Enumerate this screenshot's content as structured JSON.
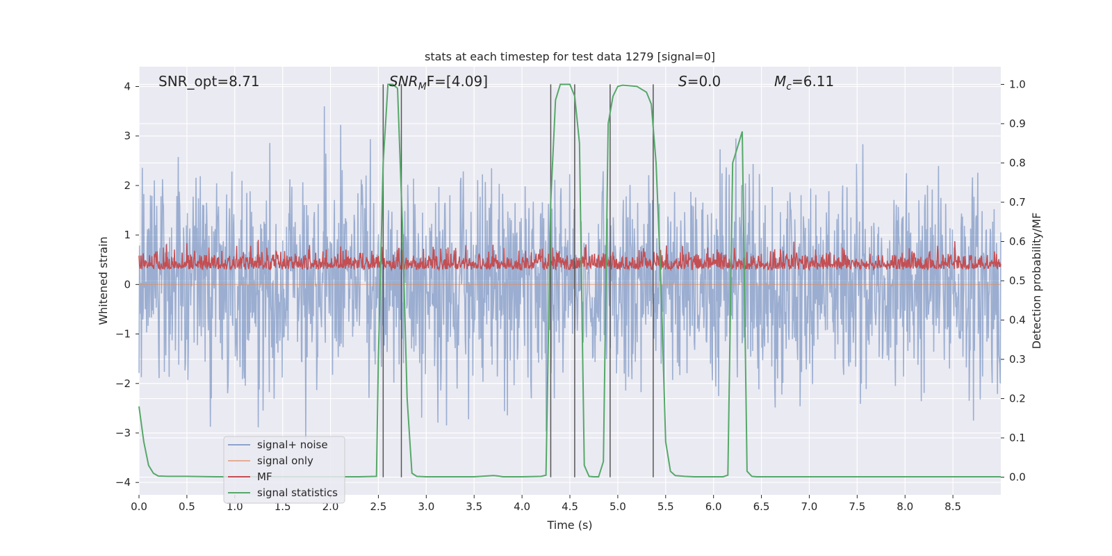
{
  "chart_data": {
    "type": "line",
    "title": "stats at each timestep for test data 1279 [signal=0]",
    "xlabel": "Time (s)",
    "ylabel_left": "Whitened strain",
    "ylabel_right": "Detection probability/MF",
    "xlim": [
      0.0,
      9.0
    ],
    "ylim_left": [
      -4.25,
      4.4
    ],
    "ylim_right": [
      -0.045,
      1.045
    ],
    "x_ticks": [
      "0.0",
      "0.5",
      "1.0",
      "1.5",
      "2.0",
      "2.5",
      "3.0",
      "3.5",
      "4.0",
      "4.5",
      "5.0",
      "5.5",
      "6.0",
      "6.5",
      "7.0",
      "7.5",
      "8.0",
      "8.5"
    ],
    "y_ticks_left": [
      "4",
      "3",
      "2",
      "1",
      "0",
      "−1",
      "−2",
      "−3",
      "−4"
    ],
    "y_ticks_right": [
      "1.0",
      "0.9",
      "0.8",
      "0.7",
      "0.6",
      "0.5",
      "0.4",
      "0.3",
      "0.2",
      "0.1",
      "0.0"
    ],
    "grid": true,
    "legend_position": "lower-left",
    "annotations": [
      {
        "id": "snr_opt",
        "text": "SNR_opt=8.71",
        "time": 0.2
      },
      {
        "id": "snr_mf",
        "text": "F=[4.09]",
        "time": 2.6
      },
      {
        "id": "s",
        "text": "=0.0",
        "time": 5.6
      },
      {
        "id": "mc",
        "text": "=6.11",
        "time": 6.6
      }
    ],
    "series": [
      {
        "name": "signal+ noise",
        "color": "#4c72b0",
        "axis": "left",
        "approx_range": [
          -3.7,
          3.6
        ]
      },
      {
        "name": "signal only",
        "color": "#dd8452",
        "axis": "left",
        "values_constant": 0.0
      },
      {
        "name": "MF",
        "color": "#c44e52",
        "axis": "left",
        "approx_range": [
          0.0,
          0.9
        ]
      },
      {
        "name": "signal statistics",
        "color": "#55a868",
        "axis": "right",
        "x": [
          0.0,
          0.05,
          0.1,
          0.15,
          0.2,
          0.3,
          0.5,
          0.8,
          1.2,
          1.5,
          2.0,
          2.3,
          2.48,
          2.5,
          2.55,
          2.6,
          2.65,
          2.7,
          2.75,
          2.8,
          2.85,
          2.9,
          3.0,
          3.5,
          3.7,
          3.75,
          3.8,
          4.0,
          4.2,
          4.25,
          4.3,
          4.35,
          4.4,
          4.45,
          4.5,
          4.55,
          4.6,
          4.65,
          4.7,
          4.75,
          4.8,
          4.85,
          4.9,
          4.95,
          5.0,
          5.05,
          5.1,
          5.2,
          5.3,
          5.35,
          5.4,
          5.45,
          5.5,
          5.55,
          5.6,
          5.7,
          5.8,
          6.0,
          6.1,
          6.15,
          6.2,
          6.25,
          6.3,
          6.35,
          6.4,
          6.45,
          6.5,
          7.0,
          8.0,
          9.0
        ],
        "values": [
          0.18,
          0.09,
          0.03,
          0.01,
          0.003,
          0.002,
          0.002,
          0.001,
          0.001,
          0.001,
          0.001,
          0.001,
          0.002,
          0.3,
          0.8,
          1.0,
          1.0,
          0.99,
          0.65,
          0.2,
          0.01,
          0.002,
          0.001,
          0.001,
          0.004,
          0.003,
          0.001,
          0.001,
          0.002,
          0.005,
          0.7,
          0.96,
          1.0,
          1.0,
          1.0,
          0.97,
          0.85,
          0.03,
          0.002,
          0.001,
          0.001,
          0.04,
          0.9,
          0.97,
          0.995,
          0.998,
          0.997,
          0.995,
          0.98,
          0.95,
          0.8,
          0.5,
          0.09,
          0.015,
          0.004,
          0.002,
          0.001,
          0.001,
          0.001,
          0.005,
          0.8,
          0.84,
          0.88,
          0.015,
          0.002,
          0.001,
          0.001,
          0.001,
          0.001,
          0.001
        ]
      }
    ],
    "vertical_lines": [
      2.55,
      2.74,
      4.3,
      4.55,
      4.92,
      5.37
    ]
  }
}
